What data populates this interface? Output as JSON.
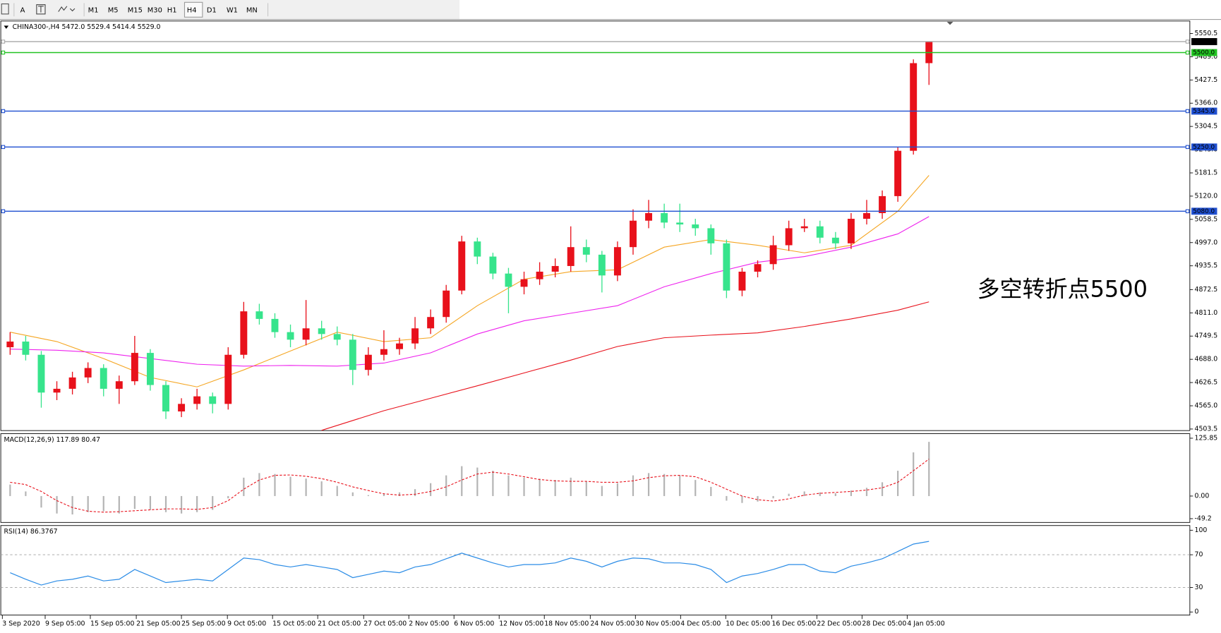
{
  "toolbar": {
    "tools": [
      "A"
    ],
    "timeframes": [
      "M1",
      "M5",
      "M15",
      "M30",
      "H1",
      "H4",
      "D1",
      "W1",
      "MN"
    ],
    "active": "H4"
  },
  "chart_data": [
    {
      "type": "candlestick",
      "title": "CHINA300-,H4  5472.0 5529.4 5414.4 5529.0",
      "annotation": "多空转折点5500",
      "up_color": "#e8111b",
      "down_color": "#37e48c",
      "open": [
        4720,
        4735,
        4700,
        4600,
        4610,
        4640,
        4665,
        4610,
        4630,
        4705,
        4620,
        4550,
        4570,
        4590,
        4570,
        4700,
        4815,
        4795,
        4760,
        4740,
        4770,
        4755,
        4740,
        4660,
        4700,
        4715,
        4730,
        4770,
        4800,
        4870,
        5000,
        4960,
        4915,
        4880,
        4900,
        4920,
        4935,
        4985,
        4965,
        4910,
        4985,
        5055,
        5075,
        5050,
        5045,
        5035,
        4995,
        4870,
        4920,
        4940,
        4990,
        5035,
        5040,
        5010,
        4995,
        5060,
        5075,
        5120,
        5240,
        5472.0
      ],
      "high": [
        4760,
        4750,
        4710,
        4630,
        4655,
        4680,
        4675,
        4645,
        4750,
        4715,
        4630,
        4585,
        4610,
        4600,
        4720,
        4840,
        4835,
        4810,
        4780,
        4845,
        4790,
        4775,
        4755,
        4720,
        4765,
        4745,
        4800,
        4820,
        4885,
        5015,
        5010,
        4970,
        4930,
        4920,
        4945,
        4955,
        5040,
        5005,
        4975,
        5000,
        5085,
        5110,
        5100,
        5100,
        5060,
        5045,
        5005,
        4930,
        4950,
        5015,
        5055,
        5060,
        5055,
        5025,
        5075,
        5110,
        5135,
        5250,
        5482,
        5529.4
      ],
      "low": [
        4700,
        4685,
        4560,
        4580,
        4595,
        4625,
        4590,
        4570,
        4620,
        4605,
        4530,
        4535,
        4555,
        4545,
        4555,
        4690,
        4780,
        4745,
        4720,
        4725,
        4740,
        4725,
        4620,
        4645,
        4685,
        4700,
        4715,
        4755,
        4785,
        4860,
        4940,
        4900,
        4810,
        4860,
        4885,
        4905,
        4920,
        4945,
        4865,
        4895,
        4965,
        5035,
        5035,
        5025,
        5015,
        4965,
        4850,
        4855,
        4905,
        4925,
        4975,
        5025,
        4995,
        4980,
        4980,
        5045,
        5060,
        5105,
        5230,
        5414.4
      ],
      "close": [
        4735,
        4700,
        4600,
        4610,
        4640,
        4665,
        4610,
        4630,
        4705,
        4620,
        4550,
        4570,
        4590,
        4570,
        4700,
        4815,
        4795,
        4760,
        4740,
        4770,
        4755,
        4740,
        4660,
        4700,
        4715,
        4730,
        4770,
        4800,
        4870,
        5000,
        4960,
        4915,
        4880,
        4900,
        4920,
        4935,
        4985,
        4965,
        4910,
        4985,
        5055,
        5075,
        5050,
        5045,
        5035,
        4995,
        4870,
        4920,
        4940,
        4990,
        5035,
        5040,
        5010,
        4995,
        5060,
        5075,
        5120,
        5240,
        5472,
        5529.0
      ],
      "lines": [
        {
          "color": "#f5a623",
          "x": [
            0,
            3,
            6,
            9,
            12,
            15,
            18,
            21,
            24,
            27,
            30,
            33,
            36,
            39,
            42,
            45,
            48,
            51,
            54,
            57,
            59
          ],
          "values": [
            4760,
            4735,
            4690,
            4640,
            4615,
            4660,
            4710,
            4760,
            4735,
            4745,
            4830,
            4900,
            4920,
            4925,
            4985,
            5005,
            4990,
            4970,
            4990,
            5080,
            5175
          ]
        },
        {
          "color": "#ee22ee",
          "x": [
            0,
            3,
            6,
            9,
            12,
            15,
            18,
            21,
            24,
            27,
            30,
            33,
            36,
            39,
            42,
            45,
            48,
            51,
            54,
            57,
            59
          ],
          "values": [
            4715,
            4712,
            4705,
            4690,
            4675,
            4670,
            4672,
            4670,
            4678,
            4705,
            4755,
            4790,
            4810,
            4830,
            4880,
            4915,
            4945,
            4960,
            4985,
            5020,
            5066
          ]
        },
        {
          "color": "#e8111b",
          "x": [
            20,
            24,
            27,
            30,
            33,
            36,
            39,
            42,
            45,
            48,
            51,
            54,
            57,
            59
          ],
          "values": [
            4500,
            4552,
            4585,
            4618,
            4652,
            4686,
            4722,
            4745,
            4752,
            4758,
            4775,
            4795,
            4818,
            4840
          ]
        }
      ],
      "levels": [
        {
          "value": 5529.0,
          "label": "5529.0",
          "color": "#000000",
          "line_color": "#a8a8a8"
        },
        {
          "value": 5500.0,
          "label": "5500.0",
          "color": "#22c322",
          "line_color": "#22c322"
        },
        {
          "value": 5345.0,
          "label": "5345.0",
          "color": "#1f4fd0",
          "line_color": "#1f4fd0"
        },
        {
          "value": 5250.0,
          "label": "5250.0",
          "color": "#1f4fd0",
          "line_color": "#1f4fd0"
        },
        {
          "value": 5080.0,
          "label": "5080.0",
          "color": "#1f4fd0",
          "line_color": "#1f4fd0"
        }
      ],
      "xlim": [
        -0.5,
        75.75
      ],
      "xticks": [
        {
          "value": -0.5,
          "label": "3 Sep 2020"
        },
        {
          "value": 2.25,
          "label": "9 Sep 05:00"
        },
        {
          "value": 5.15,
          "label": "15 Sep 05:00"
        },
        {
          "value": 8.1,
          "label": "21 Sep 05:00"
        },
        {
          "value": 11.0,
          "label": "25 Sep 05:00"
        },
        {
          "value": 13.95,
          "label": "9 Oct 05:00"
        },
        {
          "value": 16.85,
          "label": "15 Oct 05:00"
        },
        {
          "value": 19.75,
          "label": "21 Oct 05:00"
        },
        {
          "value": 22.7,
          "label": "27 Oct 05:00"
        },
        {
          "value": 25.6,
          "label": "2 Nov 05:00"
        },
        {
          "value": 28.5,
          "label": "6 Nov 05:00"
        },
        {
          "value": 31.4,
          "label": "12 Nov 05:00"
        },
        {
          "value": 34.3,
          "label": "18 Nov 05:00"
        },
        {
          "value": 37.25,
          "label": "24 Nov 05:00"
        },
        {
          "value": 40.15,
          "label": "30 Nov 05:00"
        },
        {
          "value": 43.05,
          "label": "4 Dec 05:00"
        },
        {
          "value": 45.95,
          "label": "10 Dec 05:00"
        },
        {
          "value": 48.9,
          "label": "16 Dec 05:00"
        },
        {
          "value": 51.8,
          "label": "22 Dec 05:00"
        },
        {
          "value": 54.7,
          "label": "28 Dec 05:00"
        },
        {
          "value": 57.6,
          "label": "4 Jan 05:00"
        }
      ],
      "ylim": [
        4499.4,
        5583.5
      ],
      "yticks": [
        5550.5,
        {
          "value": 5489.0,
          "label": "5489.0"
        },
        5427.5,
        {
          "value": 5366.0,
          "label": "5366.0"
        },
        5304.5,
        {
          "value": 5243.0,
          "label": "5243.0"
        },
        5181.5,
        {
          "value": 5120.0,
          "label": "5120.0"
        },
        5058.5,
        {
          "value": 4997.0,
          "label": "4997.0"
        },
        4935.5,
        4872.5,
        {
          "value": 4811.0,
          "label": "4811.0"
        },
        4749.5,
        {
          "value": 4688.0,
          "label": "4688.0"
        },
        4626.5,
        {
          "value": 4565.0,
          "label": "4565.0"
        },
        4503.5
      ]
    },
    {
      "type": "macd",
      "title": "MACD(12,26,9) 117.89 80.47",
      "histogram": {
        "color": "#b4b4b4",
        "values": [
          25,
          10,
          -25,
          -38,
          -40,
          -35,
          -33,
          -38,
          -28,
          -30,
          -35,
          -38,
          -35,
          -30,
          -5,
          40,
          50,
          48,
          42,
          38,
          32,
          22,
          8,
          2,
          5,
          8,
          15,
          28,
          45,
          65,
          62,
          55,
          45,
          40,
          38,
          35,
          40,
          32,
          22,
          28,
          45,
          50,
          48,
          45,
          35,
          20,
          -10,
          -15,
          -12,
          -5,
          5,
          10,
          8,
          6,
          12,
          18,
          30,
          55,
          95,
          117.89
        ]
      },
      "signal": {
        "color": "#e8111b",
        "values": [
          30,
          25,
          10,
          -10,
          -25,
          -33,
          -35,
          -34,
          -32,
          -30,
          -28,
          -28,
          -29,
          -25,
          -10,
          15,
          35,
          45,
          46,
          43,
          38,
          30,
          20,
          12,
          5,
          2,
          4,
          10,
          20,
          35,
          48,
          52,
          48,
          42,
          36,
          33,
          32,
          32,
          30,
          30,
          33,
          40,
          44,
          45,
          42,
          30,
          15,
          0,
          -8,
          -11,
          -6,
          2,
          6,
          8,
          10,
          13,
          18,
          30,
          55,
          80.47
        ]
      },
      "ylim": [
        -57.4,
        135.7
      ],
      "yticks": [
        125.85,
        {
          "value": 0,
          "label": "0.00"
        },
        -49.2
      ]
    },
    {
      "type": "rsi",
      "title": "RSI(14) 86.3767",
      "color": "#2b8ce6",
      "values": [
        48,
        40,
        33,
        38,
        40,
        44,
        38,
        40,
        52,
        44,
        36,
        38,
        40,
        38,
        52,
        66,
        64,
        58,
        55,
        58,
        55,
        52,
        42,
        46,
        50,
        48,
        55,
        58,
        65,
        72,
        66,
        60,
        55,
        58,
        58,
        60,
        66,
        62,
        55,
        62,
        66,
        65,
        60,
        60,
        58,
        52,
        36,
        44,
        47,
        52,
        58,
        58,
        50,
        48,
        56,
        60,
        65,
        74,
        83,
        86.3767
      ],
      "levels": [
        70,
        30
      ],
      "ylim": [
        -3.8,
        105.7
      ],
      "yticks": [
        100,
        70,
        30,
        0
      ]
    }
  ]
}
